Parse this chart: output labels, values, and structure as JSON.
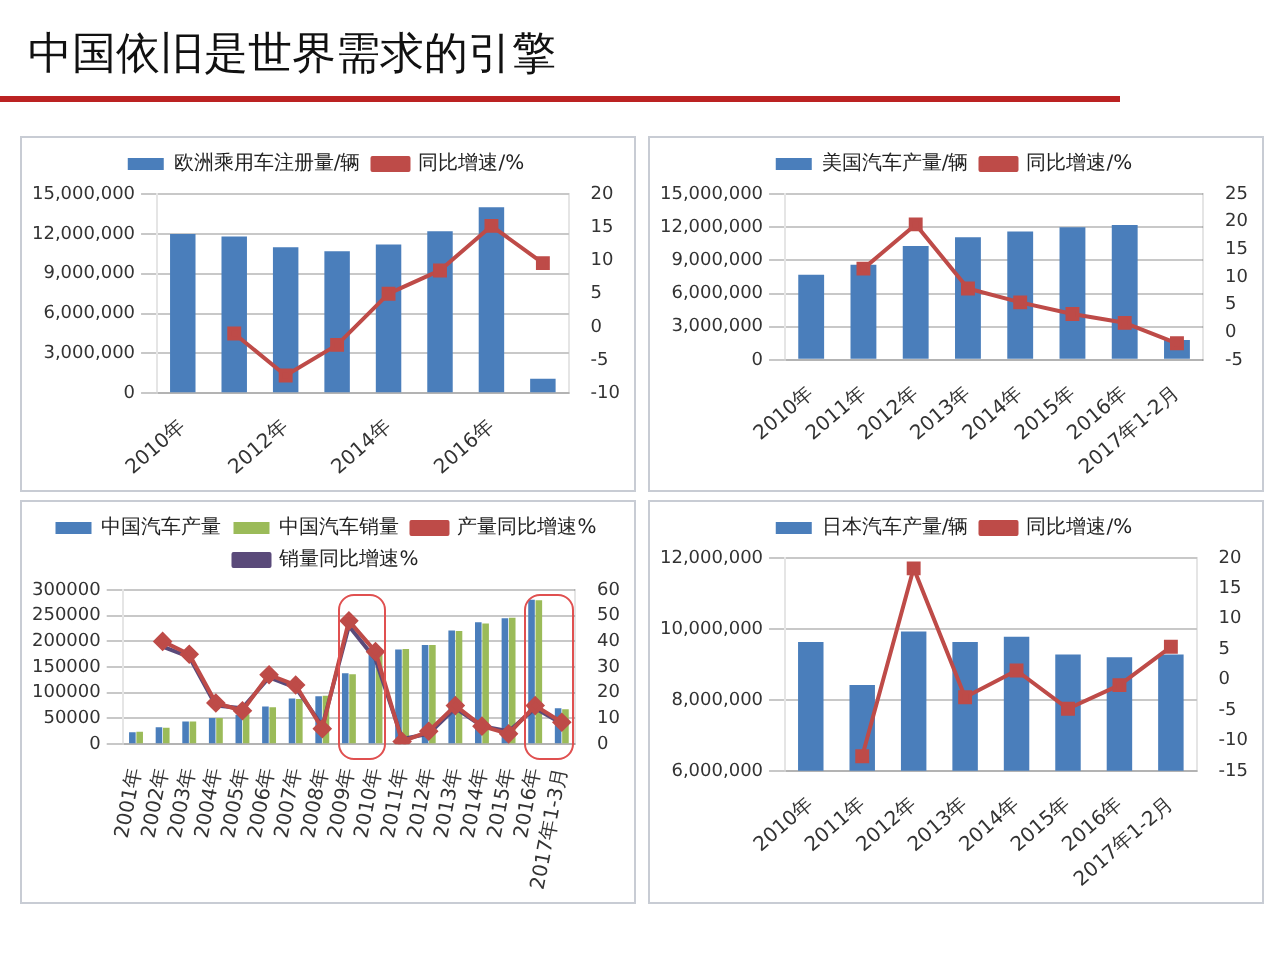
{
  "chart_data": [
    {
      "type": "other",
      "title": "中国依旧是世界需求的引擎"
    },
    {
      "type": "bar",
      "categories": [
        "2010年",
        null,
        "2012年",
        null,
        "2014年",
        null,
        "2016年",
        null
      ],
      "series": [
        {
          "name": "欧洲乘用车注册量/辆",
          "type": "bar",
          "color": "#4a7ebb",
          "values": [
            12000000,
            11800000,
            11000000,
            10700000,
            11200000,
            12200000,
            14000000,
            1100000
          ]
        },
        {
          "name": "同比增速/%",
          "type": "line",
          "axis": "y2",
          "marker": "square",
          "color": "#be4b48",
          "values": [
            null,
            -1,
            -7.3,
            -2.7,
            5,
            8.5,
            15.2,
            9.6
          ]
        }
      ],
      "ylim": [
        0,
        15000000
      ],
      "yticks": [
        0,
        {
          "value": 3000000,
          "label": "3,000,000"
        },
        {
          "value": 6000000,
          "label": "6,000,000"
        },
        {
          "value": 9000000,
          "label": "9,000,000"
        },
        {
          "value": 12000000,
          "label": "12,000,000"
        },
        {
          "value": 15000000,
          "label": "15,000,000"
        }
      ],
      "y2lim": [
        -10,
        20
      ],
      "y2ticks": [
        -10,
        -5,
        0,
        5,
        10,
        15,
        20
      ],
      "grid": "y",
      "legend": "top"
    },
    {
      "type": "bar",
      "categories": [
        "2010年",
        "2011年",
        "2012年",
        "2013年",
        "2014年",
        "2015年",
        "2016年",
        "2017年1-2月"
      ],
      "series": [
        {
          "name": "美国汽车产量/辆",
          "type": "bar",
          "color": "#4a7ebb",
          "values": [
            7700000,
            8600000,
            10300000,
            11100000,
            11600000,
            12000000,
            12200000,
            1800000
          ]
        },
        {
          "name": "同比增速/%",
          "type": "line",
          "axis": "y2",
          "marker": "square",
          "color": "#be4b48",
          "values": [
            null,
            11.5,
            19.5,
            7.9,
            5.4,
            3.3,
            1.7,
            -2
          ]
        }
      ],
      "ylim": [
        0,
        15000000
      ],
      "yticks": [
        0,
        {
          "value": 3000000,
          "label": "3,000,000"
        },
        {
          "value": 6000000,
          "label": "6,000,000"
        },
        {
          "value": 9000000,
          "label": "9,000,000"
        },
        {
          "value": 12000000,
          "label": "12,000,000"
        },
        {
          "value": 15000000,
          "label": "15,000,000"
        }
      ],
      "y2lim": [
        -5,
        25
      ],
      "y2ticks": [
        -5,
        0,
        5,
        10,
        15,
        20,
        25
      ],
      "grid": "y",
      "legend": "top"
    },
    {
      "type": "bar",
      "categories": [
        "2001年",
        "2002年",
        "2003年",
        "2004年",
        "2005年",
        "2006年",
        "2007年",
        "2008年",
        "2009年",
        "2010年",
        "2011年",
        "2012年",
        "2013年",
        "2014年",
        "2015年",
        "2016年",
        "2017年1-3月"
      ],
      "series": [
        {
          "name": "中国汽车产量",
          "type": "bar",
          "color": "#4a7ebb",
          "values": [
            23000,
            33000,
            44000,
            51000,
            57000,
            73000,
            89000,
            93000,
            138000,
            183000,
            184000,
            193000,
            221000,
            237000,
            245000,
            281000,
            70000
          ]
        },
        {
          "name": "中国汽车销量",
          "type": "bar",
          "color": "#9bbb59",
          "values": [
            24000,
            32000,
            44000,
            51000,
            58000,
            72000,
            88000,
            94000,
            136000,
            181000,
            185000,
            193000,
            220000,
            235000,
            246000,
            280000,
            68000
          ]
        },
        {
          "name": "产量同比增速%",
          "type": "line",
          "axis": "y2",
          "marker": "diamond",
          "color": "#be4b48",
          "values": [
            null,
            40,
            35,
            16,
            13,
            27,
            23,
            6,
            48,
            36,
            1,
            5,
            15,
            7,
            4,
            15,
            8.5
          ]
        },
        {
          "name": "销量同比增速%",
          "type": "line",
          "axis": "y2",
          "color": "#5a4a7a",
          "values": [
            null,
            38,
            34,
            15,
            14,
            26,
            22,
            7,
            46,
            33,
            2,
            4,
            14,
            7,
            5,
            14,
            8
          ]
        }
      ],
      "ylim": [
        0,
        300000
      ],
      "yticks": [
        0,
        50000,
        100000,
        150000,
        200000,
        250000,
        300000
      ],
      "y2lim": [
        0,
        60
      ],
      "y2ticks": [
        0,
        10,
        20,
        30,
        40,
        50,
        60
      ],
      "grid": "y",
      "legend": "top"
    },
    {
      "type": "bar",
      "categories": [
        "2010年",
        "2011年",
        "2012年",
        "2013年",
        "2014年",
        "2015年",
        "2016年",
        "2017年1-2月"
      ],
      "series": [
        {
          "name": "日本汽车产量/辆",
          "type": "bar",
          "color": "#4a7ebb",
          "values": [
            9630000,
            8420000,
            9930000,
            9630000,
            9780000,
            9280000,
            9200000,
            9280000
          ]
        },
        {
          "name": "同比增速/%",
          "type": "line",
          "axis": "y2",
          "marker": "square",
          "color": "#be4b48",
          "values": [
            null,
            -12.6,
            18.3,
            -2.9,
            1.5,
            -4.8,
            -0.9,
            5.4
          ]
        }
      ],
      "ylim": [
        6000000,
        12000000
      ],
      "yticks": [
        {
          "value": 6000000,
          "label": "6,000,000"
        },
        {
          "value": 8000000,
          "label": "8,000,000"
        },
        {
          "value": 10000000,
          "label": "10,000,000"
        },
        {
          "value": 12000000,
          "label": "12,000,000"
        }
      ],
      "y2lim": [
        -15,
        20
      ],
      "y2ticks": [
        -15,
        -10,
        -5,
        0,
        5,
        10,
        15,
        20
      ],
      "grid": "y",
      "legend": "top"
    }
  ]
}
